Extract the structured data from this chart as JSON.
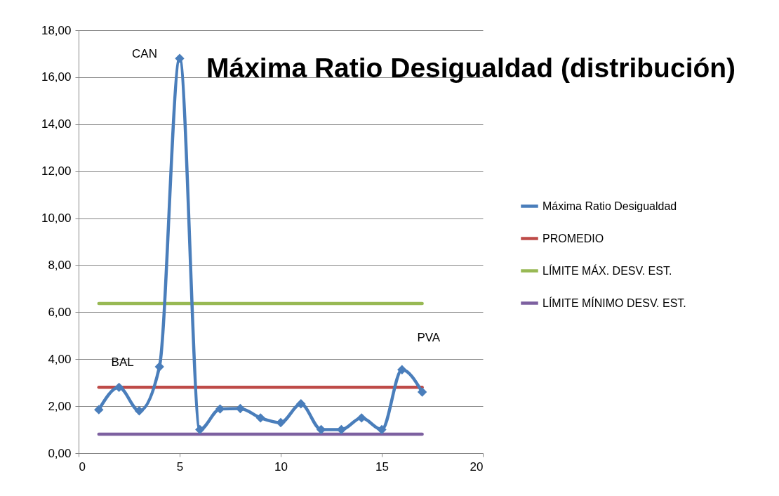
{
  "chart_data": {
    "type": "line",
    "title": "Máxima Ratio Desigualdad (distribución)",
    "x": [
      1,
      2,
      3,
      4,
      5,
      6,
      7,
      8,
      9,
      10,
      11,
      12,
      13,
      14,
      15,
      16,
      17
    ],
    "series": [
      {
        "name": "Máxima Ratio Desigualdad",
        "color": "#4a7ebb",
        "marker": "diamond",
        "values": [
          1.85,
          2.8,
          1.8,
          3.68,
          16.8,
          1.0,
          1.88,
          1.9,
          1.5,
          1.3,
          2.1,
          1.0,
          1.0,
          1.5,
          1.0,
          3.55,
          2.6
        ]
      },
      {
        "name": "PROMEDIO",
        "color": "#be4b48",
        "marker": "none",
        "values": [
          2.8,
          2.8,
          2.8,
          2.8,
          2.8,
          2.8,
          2.8,
          2.8,
          2.8,
          2.8,
          2.8,
          2.8,
          2.8,
          2.8,
          2.8,
          2.8,
          2.8
        ]
      },
      {
        "name": "LÍMITE MÁX. DESV. EST.",
        "color": "#98b954",
        "marker": "none",
        "values": [
          6.37,
          6.37,
          6.37,
          6.37,
          6.37,
          6.37,
          6.37,
          6.37,
          6.37,
          6.37,
          6.37,
          6.37,
          6.37,
          6.37,
          6.37,
          6.37,
          6.37
        ]
      },
      {
        "name": "LÍMITE MÍNIMO DESV. EST.",
        "color": "#7d60a0",
        "marker": "none",
        "values": [
          0.81,
          0.81,
          0.81,
          0.81,
          0.81,
          0.81,
          0.81,
          0.81,
          0.81,
          0.81,
          0.81,
          0.81,
          0.81,
          0.81,
          0.81,
          0.81,
          0.81
        ]
      }
    ],
    "annotations": [
      {
        "text": "CAN",
        "x": 5,
        "y": 16.8
      },
      {
        "text": "BAL",
        "x": 2,
        "y": 2.8
      },
      {
        "text": "PVA",
        "x": 16,
        "y": 3.55
      }
    ],
    "xlim": [
      0,
      20
    ],
    "xticks": [
      0,
      5,
      10,
      15,
      20
    ],
    "ylim": [
      0,
      18
    ],
    "yticks": [
      {
        "value": 0,
        "label": "0,00"
      },
      {
        "value": 2,
        "label": "2,00"
      },
      {
        "value": 4,
        "label": "4,00"
      },
      {
        "value": 6,
        "label": "6,00"
      },
      {
        "value": 8,
        "label": "8,00"
      },
      {
        "value": 10,
        "label": "10,00"
      },
      {
        "value": 12,
        "label": "12,00"
      },
      {
        "value": 14,
        "label": "14,00"
      },
      {
        "value": 16,
        "label": "16,00"
      },
      {
        "value": 18,
        "label": "18,00"
      }
    ],
    "grid": "y",
    "legend": "right"
  }
}
